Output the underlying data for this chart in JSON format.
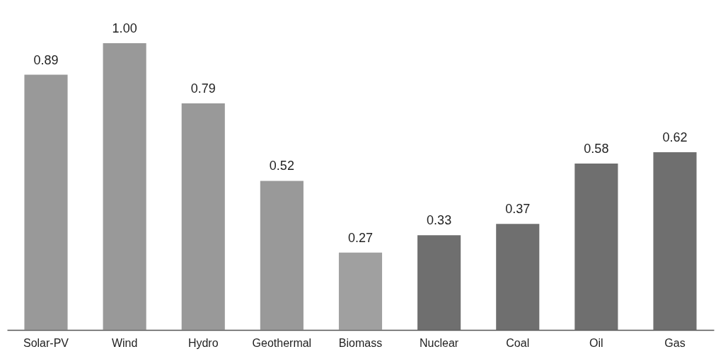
{
  "chart_data": {
    "type": "bar",
    "categories": [
      "Solar-PV",
      "Wind",
      "Hydro",
      "Geothermal",
      "Biomass",
      "Nuclear",
      "Coal",
      "Oil",
      "Gas"
    ],
    "values": [
      0.89,
      1.0,
      0.79,
      0.52,
      0.27,
      0.33,
      0.37,
      0.58,
      0.62
    ],
    "value_labels": [
      "0.89",
      "1.00",
      "0.79",
      "0.52",
      "0.27",
      "0.33",
      "0.37",
      "0.58",
      "0.62"
    ],
    "colors": [
      "#999999",
      "#999999",
      "#999999",
      "#999999",
      "#a0a0a0",
      "#6f6f6f",
      "#6f6f6f",
      "#6f6f6f",
      "#6f6f6f"
    ]
  }
}
